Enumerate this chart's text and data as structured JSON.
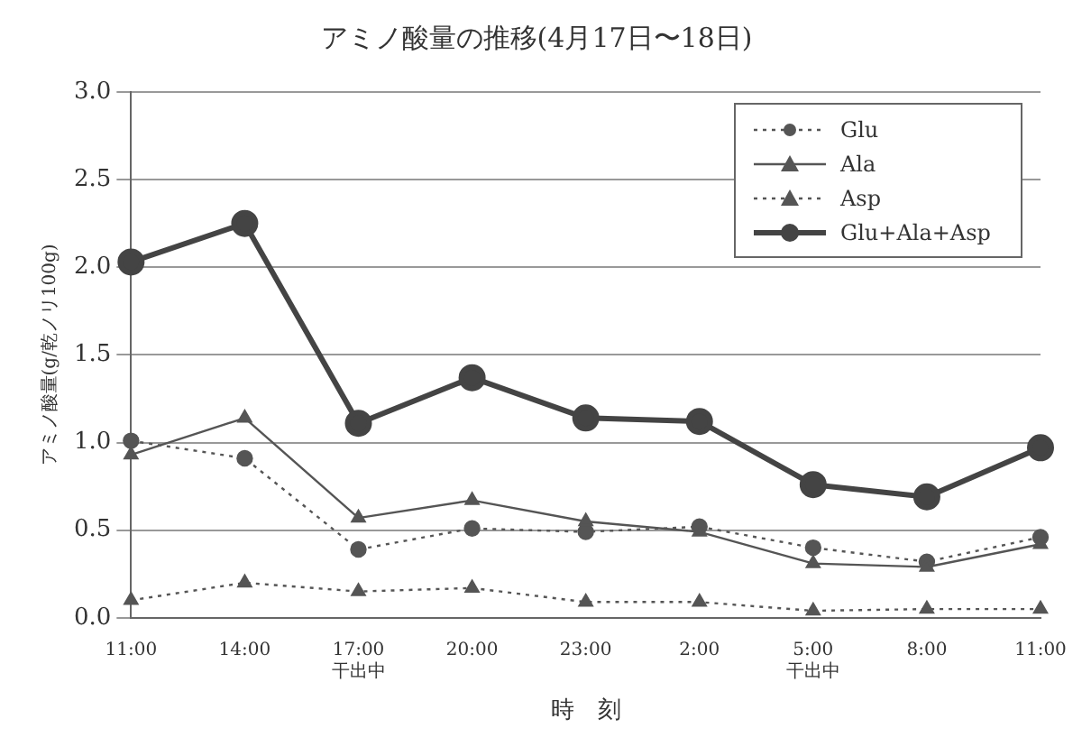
{
  "chart_data": {
    "type": "line",
    "title": "アミノ酸量の推移(4月17日〜18日)",
    "xlabel": "時　刻",
    "ylabel": "アミノ酸量(g/乾ノリ100g)",
    "categories": [
      "11:00",
      "14:00",
      "17:00\n干出中",
      "20:00",
      "23:00",
      "2:00",
      "5:00\n干出中",
      "8:00",
      "11:00"
    ],
    "series": [
      {
        "name": "Glu",
        "color": "#555555",
        "marker": "circle",
        "line_style": "dotted",
        "values": [
          1.01,
          0.91,
          0.39,
          0.51,
          0.49,
          0.52,
          0.4,
          0.32,
          0.46
        ]
      },
      {
        "name": "Ala",
        "color": "#555555",
        "marker": "triangle",
        "line_style": "solid",
        "values": [
          0.93,
          1.14,
          0.57,
          0.67,
          0.55,
          0.49,
          0.31,
          0.29,
          0.42
        ]
      },
      {
        "name": "Asp",
        "color": "#555555",
        "marker": "triangle",
        "line_style": "dotted",
        "values": [
          0.1,
          0.2,
          0.15,
          0.17,
          0.09,
          0.09,
          0.04,
          0.05,
          0.05
        ]
      },
      {
        "name": "Glu+Ala+Asp",
        "color": "#444444",
        "marker": "circle",
        "line_style": "solid",
        "values": [
          2.03,
          2.25,
          1.11,
          1.37,
          1.14,
          1.12,
          0.76,
          0.69,
          0.97
        ]
      }
    ],
    "ylim": [
      0,
      3
    ],
    "yticks": [
      {
        "value": 0,
        "label": "0.0"
      },
      {
        "value": 0.5,
        "label": "0.5"
      },
      {
        "value": 1,
        "label": "1.0"
      },
      {
        "value": 1.5,
        "label": "1.5"
      },
      {
        "value": 2,
        "label": "2.0"
      },
      {
        "value": 2.5,
        "label": "2.5"
      },
      {
        "value": 3,
        "label": "3.0"
      }
    ],
    "grid": "y",
    "legend": "top right"
  }
}
